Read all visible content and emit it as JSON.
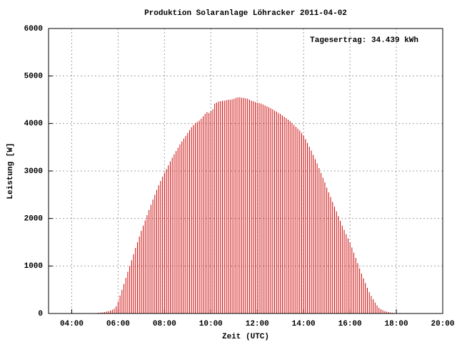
{
  "chart_data": {
    "type": "impulse",
    "title": "Produktion Solaranlage Löhracker 2011-04-02",
    "x_label": "Zeit (UTC)",
    "y_label": "Leistung [W]",
    "annotation": "Tagesertrag: 34.439 kWh",
    "color": "#cc0000",
    "grid": true,
    "xlim": [
      180,
      1200
    ],
    "xticks": [
      {
        "value": 240,
        "label": "04:00"
      },
      {
        "value": 360,
        "label": "06:00"
      },
      {
        "value": 480,
        "label": "08:00"
      },
      {
        "value": 600,
        "label": "10:00"
      },
      {
        "value": 720,
        "label": "12:00"
      },
      {
        "value": 840,
        "label": "14:00"
      },
      {
        "value": 960,
        "label": "16:00"
      },
      {
        "value": 1080,
        "label": "18:00"
      },
      {
        "value": 1200,
        "label": "20:00"
      }
    ],
    "ylim": [
      0,
      6000
    ],
    "yticks": [
      0,
      1000,
      2000,
      3000,
      4000,
      5000,
      6000
    ],
    "x": [
      305,
      310,
      315,
      320,
      325,
      330,
      335,
      340,
      345,
      350,
      355,
      360,
      365,
      370,
      375,
      380,
      385,
      390,
      395,
      400,
      405,
      410,
      415,
      420,
      425,
      430,
      435,
      440,
      445,
      450,
      455,
      460,
      465,
      470,
      475,
      480,
      485,
      490,
      495,
      500,
      505,
      510,
      515,
      520,
      525,
      530,
      535,
      540,
      545,
      550,
      555,
      560,
      565,
      570,
      575,
      580,
      585,
      590,
      595,
      600,
      605,
      610,
      615,
      620,
      625,
      630,
      635,
      640,
      645,
      650,
      655,
      660,
      665,
      670,
      675,
      680,
      685,
      690,
      695,
      700,
      705,
      710,
      715,
      720,
      725,
      730,
      735,
      740,
      745,
      750,
      755,
      760,
      765,
      770,
      775,
      780,
      785,
      790,
      795,
      800,
      805,
      810,
      815,
      820,
      825,
      830,
      835,
      840,
      845,
      850,
      855,
      860,
      865,
      870,
      875,
      880,
      885,
      890,
      895,
      900,
      905,
      910,
      915,
      920,
      925,
      930,
      935,
      940,
      945,
      950,
      955,
      960,
      965,
      970,
      975,
      980,
      985,
      990,
      995,
      1000,
      1005,
      1010,
      1015,
      1020,
      1025,
      1030,
      1035,
      1040,
      1045,
      1050,
      1055,
      1060,
      1065,
      1070,
      1075,
      1080
    ],
    "values": [
      10,
      15,
      20,
      25,
      30,
      40,
      50,
      60,
      80,
      100,
      150,
      250,
      380,
      500,
      620,
      750,
      880,
      1000,
      1120,
      1250,
      1380,
      1500,
      1620,
      1740,
      1850,
      1960,
      2070,
      2180,
      2290,
      2400,
      2500,
      2600,
      2700,
      2790,
      2880,
      2960,
      3040,
      3120,
      3200,
      3280,
      3350,
      3420,
      3490,
      3560,
      3620,
      3680,
      3740,
      3800,
      3860,
      3920,
      3970,
      4010,
      4030,
      4060,
      4100,
      4150,
      4200,
      4240,
      4220,
      4260,
      4300,
      4420,
      4440,
      4460,
      4470,
      4480,
      4480,
      4490,
      4500,
      4500,
      4510,
      4520,
      4540,
      4550,
      4550,
      4540,
      4540,
      4530,
      4520,
      4500,
      4480,
      4470,
      4450,
      4440,
      4430,
      4420,
      4400,
      4380,
      4360,
      4340,
      4320,
      4300,
      4270,
      4250,
      4220,
      4200,
      4170,
      4140,
      4110,
      4080,
      4050,
      4010,
      3970,
      3930,
      3890,
      3850,
      3800,
      3750,
      3670,
      3590,
      3510,
      3430,
      3340,
      3250,
      3160,
      3060,
      2960,
      2860,
      2760,
      2650,
      2550,
      2450,
      2350,
      2250,
      2150,
      2050,
      1950,
      1850,
      1760,
      1670,
      1580,
      1500,
      1390,
      1280,
      1170,
      1060,
      950,
      840,
      740,
      640,
      540,
      450,
      370,
      300,
      230,
      170,
      120,
      90,
      70,
      50,
      40,
      30,
      20,
      15,
      10,
      5
    ]
  }
}
